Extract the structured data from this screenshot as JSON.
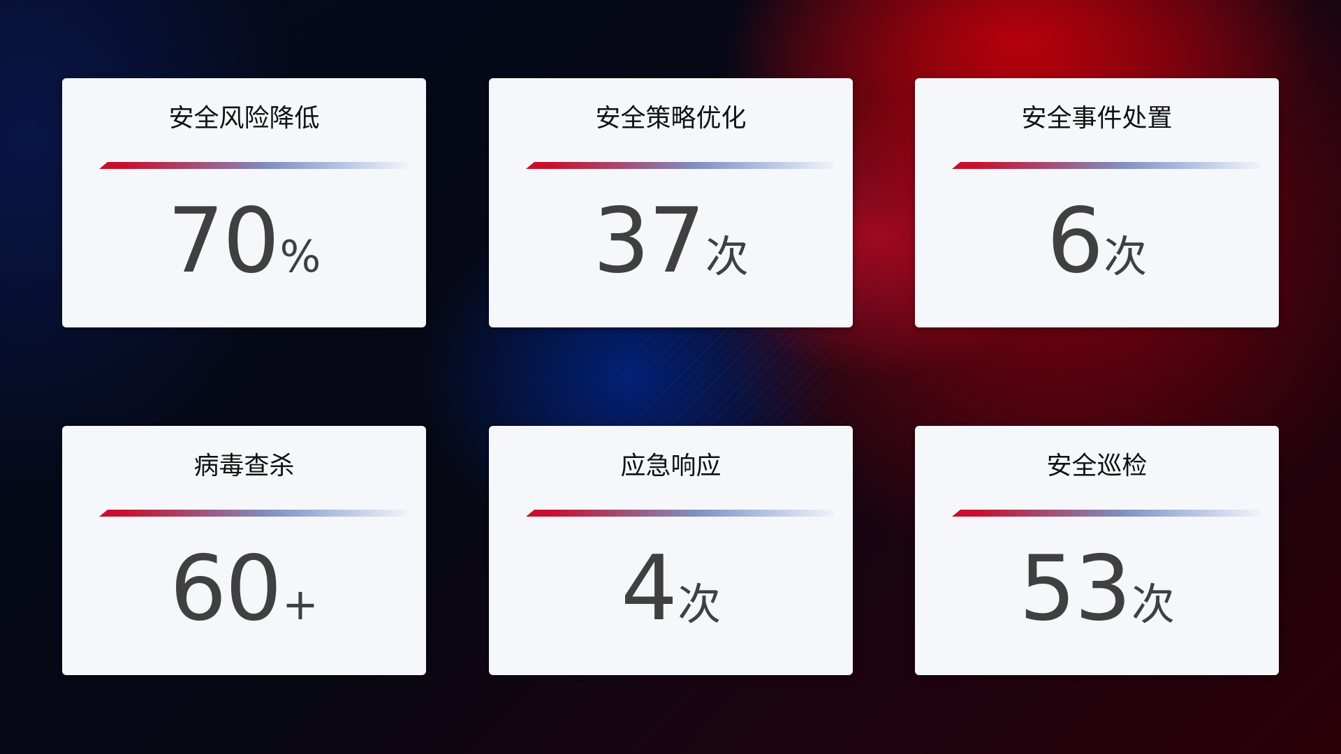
{
  "cards": [
    {
      "title": "安全风险降低",
      "value": "70",
      "suffix": "%"
    },
    {
      "title": "安全策略优化",
      "value": "37",
      "suffix": "次"
    },
    {
      "title": "安全事件处置",
      "value": "6",
      "suffix": "次"
    },
    {
      "title": "病毒查杀",
      "value": "60",
      "suffix": "+"
    },
    {
      "title": "应急响应",
      "value": "4",
      "suffix": "次"
    },
    {
      "title": "安全巡检",
      "value": "53",
      "suffix": "次"
    }
  ],
  "colors": {
    "accent_red": "#c8102e",
    "accent_blue": "#7f8fc0",
    "card_bg": "#f6f7fb",
    "value_text": "#404040"
  }
}
